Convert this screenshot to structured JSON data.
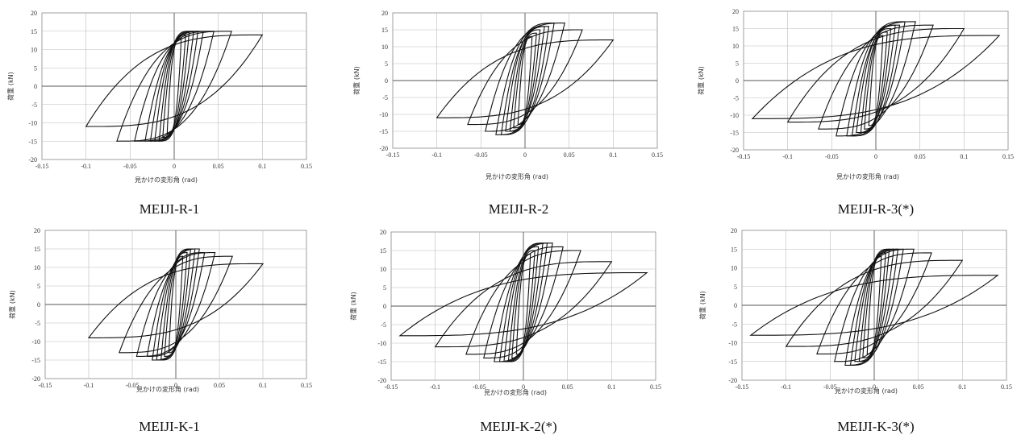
{
  "figure": {
    "captions": [
      "MEIJI-R-1",
      "MEIJI-R-2",
      "MEIJI-R-3(*)",
      "MEIJI-K-1",
      "MEIJI-K-2(*)",
      "MEIJI-K-3(*)"
    ]
  },
  "chart_data": [
    {
      "type": "line",
      "title": "MEIJI-R-1",
      "xlabel": "見かけの変形角 (rad)",
      "ylabel": "荷重 (kN)",
      "xlim": [
        -0.15,
        0.15
      ],
      "ylim": [
        -20,
        20
      ],
      "xticks": [
        "-0.15",
        "-0.1",
        "-0.05",
        "0",
        "0.05",
        "0.1",
        "0.15"
      ],
      "yticks": [
        "20",
        "15",
        "10",
        "5",
        "0",
        "-5",
        "-10",
        "-15",
        "-20"
      ],
      "grid": true,
      "series": [
        {
          "x": [
            0.008,
            0.013,
            0.017,
            0.022,
            0.027,
            0.033,
            0.045,
            0.065,
            0.1,
            -0.008,
            -0.013,
            -0.017,
            -0.022,
            -0.027,
            -0.033,
            -0.045,
            -0.065,
            -0.1
          ],
          "y": [
            13,
            14,
            15,
            15,
            15,
            15,
            15,
            15,
            14,
            -13,
            -14,
            -15,
            -15,
            -15,
            -15,
            -15,
            -15,
            -11
          ]
        }
      ]
    },
    {
      "type": "line",
      "title": "MEIJI-R-2",
      "xlabel": "見かけの変形角 (rad)",
      "ylabel": "荷重 (kN)",
      "xlim": [
        -0.15,
        0.15
      ],
      "ylim": [
        -20,
        20
      ],
      "xticks": [
        "-0.15",
        "-0.1",
        "-0.05",
        "0",
        "0.05",
        "0.1",
        "0.15"
      ],
      "yticks": [
        "20",
        "15",
        "10",
        "5",
        "0",
        "-5",
        "-10",
        "-15",
        "-20"
      ],
      "grid": true,
      "series": [
        {
          "x": [
            0.008,
            0.013,
            0.017,
            0.022,
            0.027,
            0.033,
            0.045,
            0.065,
            0.1,
            -0.008,
            -0.013,
            -0.017,
            -0.022,
            -0.027,
            -0.033,
            -0.045,
            -0.065,
            -0.1
          ],
          "y": [
            13,
            14,
            15,
            16,
            16,
            17,
            17,
            15,
            12,
            -13,
            -14,
            -15,
            -15,
            -16,
            -16,
            -15,
            -13,
            -11
          ]
        }
      ]
    },
    {
      "type": "line",
      "title": "MEIJI-R-3(*)",
      "xlabel": "見かけの変形角 (rad)",
      "ylabel": "荷重 (kN)",
      "xlim": [
        -0.15,
        0.15
      ],
      "ylim": [
        -20,
        20
      ],
      "xticks": [
        "-0.15",
        "-0.1",
        "-0.05",
        "0",
        "0.05",
        "0.1",
        "0.15"
      ],
      "yticks": [
        "20",
        "15",
        "10",
        "5",
        "0",
        "-5",
        "-10",
        "-15",
        "-20"
      ],
      "grid": true,
      "series": [
        {
          "x": [
            0.008,
            0.013,
            0.017,
            0.022,
            0.027,
            0.033,
            0.045,
            0.065,
            0.1,
            0.14,
            -0.008,
            -0.013,
            -0.017,
            -0.022,
            -0.027,
            -0.033,
            -0.045,
            -0.065,
            -0.1,
            -0.14
          ],
          "y": [
            13,
            14,
            15,
            16,
            16,
            17,
            17,
            16,
            15,
            13,
            -13,
            -14,
            -15,
            -15,
            -16,
            -16,
            -16,
            -14,
            -12,
            -11
          ]
        }
      ]
    },
    {
      "type": "line",
      "title": "MEIJI-K-1",
      "xlabel": "見かけの変形角 (rad)",
      "ylabel": "荷重 (kN)",
      "xlim": [
        -0.15,
        0.15
      ],
      "ylim": [
        -20,
        20
      ],
      "xticks": [
        "-0.15",
        "-0.1",
        "-0.05",
        "0",
        "0.05",
        "0.1",
        "0.15"
      ],
      "yticks": [
        "20",
        "15",
        "10",
        "5",
        "0",
        "-5",
        "-10",
        "-15",
        "-20"
      ],
      "grid": true,
      "series": [
        {
          "x": [
            0.008,
            0.013,
            0.017,
            0.022,
            0.027,
            0.033,
            0.045,
            0.065,
            0.1,
            -0.008,
            -0.013,
            -0.017,
            -0.022,
            -0.027,
            -0.033,
            -0.045,
            -0.065,
            -0.1
          ],
          "y": [
            13,
            14,
            15,
            15,
            15,
            14,
            14,
            13,
            11,
            -13,
            -14,
            -15,
            -15,
            -15,
            -14,
            -14,
            -13,
            -9
          ]
        }
      ]
    },
    {
      "type": "line",
      "title": "MEIJI-K-2(*)",
      "xlabel": "見かけの変形角 (rad)",
      "ylabel": "荷重 (kN)",
      "xlim": [
        -0.15,
        0.15
      ],
      "ylim": [
        -20,
        20
      ],
      "xticks": [
        "-0.15",
        "-0.1",
        "-0.05",
        "0",
        "0.05",
        "0.1",
        "0.15"
      ],
      "yticks": [
        "20",
        "15",
        "10",
        "5",
        "0",
        "-5",
        "-10",
        "-15",
        "-20"
      ],
      "grid": true,
      "series": [
        {
          "x": [
            0.008,
            0.013,
            0.017,
            0.022,
            0.027,
            0.033,
            0.045,
            0.065,
            0.1,
            0.14,
            -0.008,
            -0.013,
            -0.017,
            -0.022,
            -0.027,
            -0.033,
            -0.045,
            -0.065,
            -0.1,
            -0.14
          ],
          "y": [
            14,
            15,
            16,
            17,
            17,
            17,
            16,
            15,
            12,
            9,
            -13,
            -14,
            -15,
            -15,
            -15,
            -15,
            -14,
            -13,
            -11,
            -8
          ]
        }
      ]
    },
    {
      "type": "line",
      "title": "MEIJI-K-3(*)",
      "xlabel": "見かけの変形角 (rad)",
      "ylabel": "荷重 (kN)",
      "xlim": [
        -0.15,
        0.15
      ],
      "ylim": [
        -20,
        20
      ],
      "xticks": [
        "-0.15",
        "-0.1",
        "-0.05",
        "0",
        "0.05",
        "0.1",
        "0.15"
      ],
      "yticks": [
        "20",
        "15",
        "10",
        "5",
        "0",
        "-5",
        "-10",
        "-15",
        "-20"
      ],
      "grid": true,
      "series": [
        {
          "x": [
            0.008,
            0.013,
            0.017,
            0.022,
            0.027,
            0.033,
            0.045,
            0.065,
            0.1,
            0.14,
            -0.008,
            -0.013,
            -0.017,
            -0.022,
            -0.027,
            -0.033,
            -0.045,
            -0.065,
            -0.1,
            -0.14
          ],
          "y": [
            13,
            14,
            15,
            15,
            15,
            15,
            15,
            14,
            12,
            8,
            -13,
            -14,
            -15,
            -15,
            -16,
            -16,
            -15,
            -13,
            -11,
            -8
          ]
        }
      ]
    }
  ]
}
